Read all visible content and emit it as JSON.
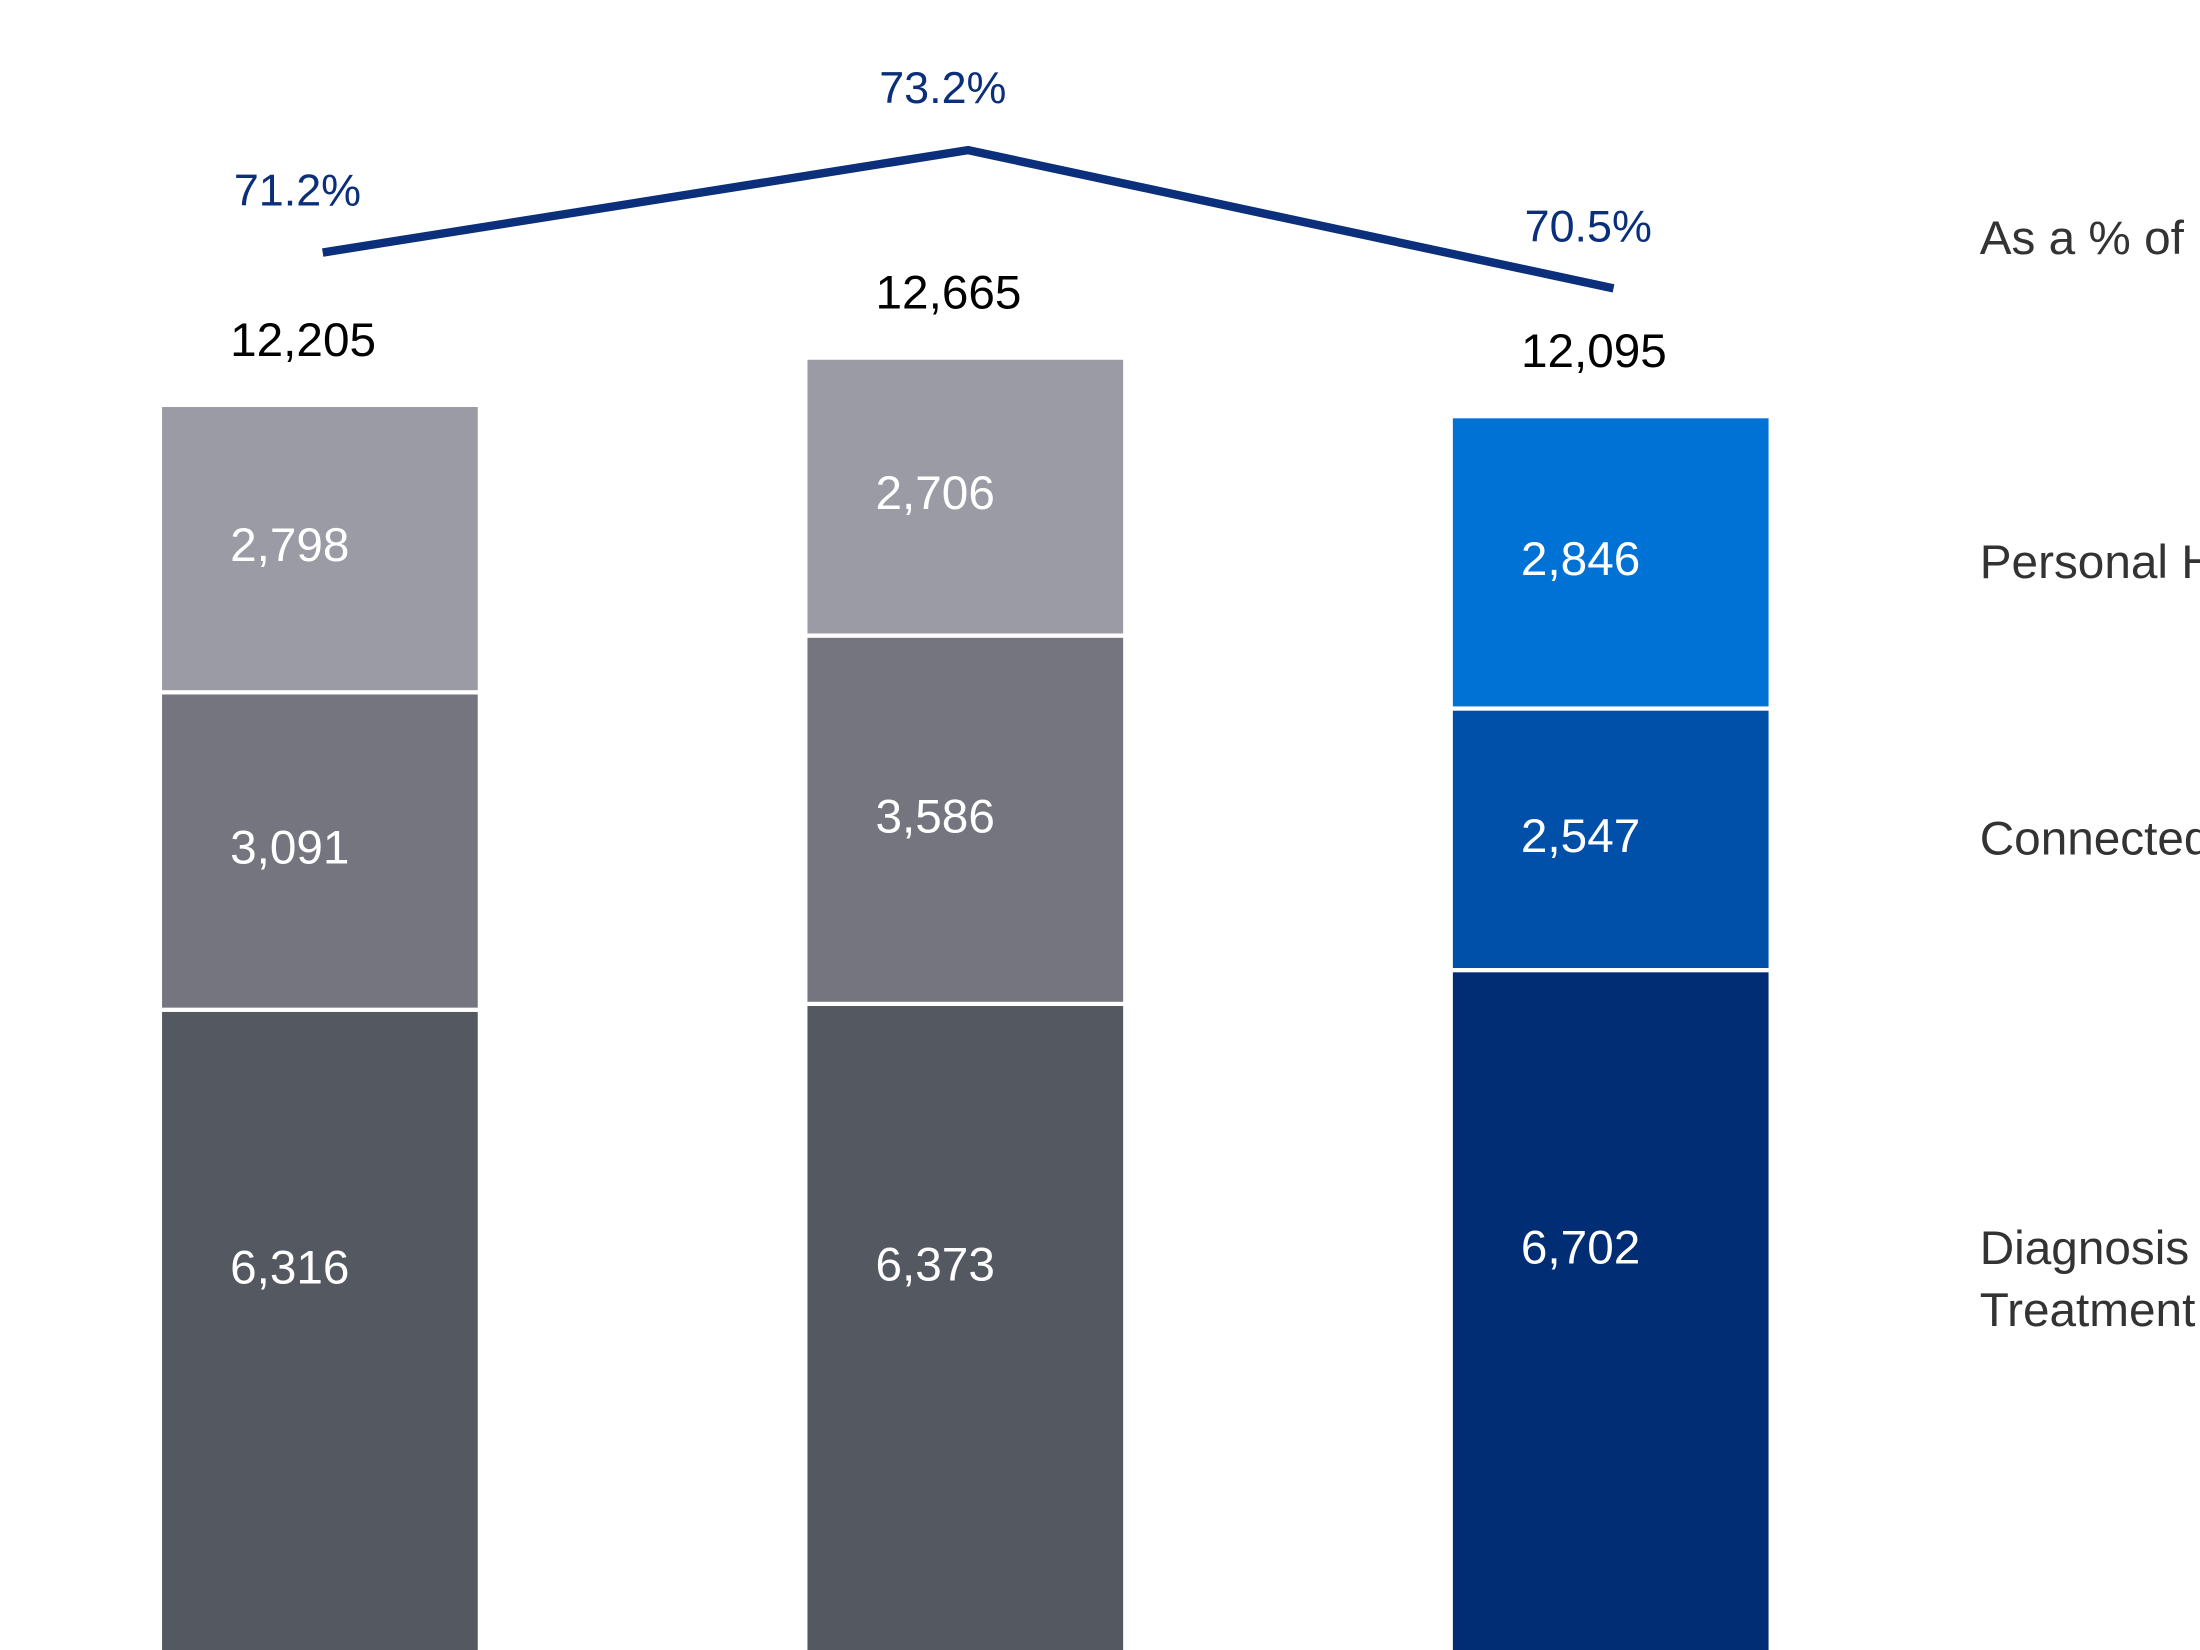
{
  "chart_data": {
    "type": "bar",
    "stacked": true,
    "categories": [
      null,
      null,
      null
    ],
    "series": [
      {
        "name": "Diagnosis\nTreatment",
        "colors": [
          "#545861",
          "#545861",
          "#002d74"
        ],
        "values": [
          6316,
          6373,
          6702
        ],
        "value_labels": [
          "6,316",
          "6,373",
          "6,702"
        ]
      },
      {
        "name": "Connected",
        "colors": [
          "#74757f",
          "#74757f",
          "#004fa9"
        ],
        "values": [
          3091,
          3586,
          2547
        ],
        "value_labels": [
          "3,091",
          "3,586",
          "2,547"
        ]
      },
      {
        "name": "Personal H",
        "colors": [
          "#9a9ba5",
          "#9a9ba5",
          "#0072d6"
        ],
        "values": [
          2798,
          2706,
          2846
        ],
        "value_labels": [
          "2,798",
          "2,706",
          "2,846"
        ]
      }
    ],
    "totals": [
      12205,
      12665,
      12095
    ],
    "total_labels": [
      "12,205",
      "12,665",
      "12,095"
    ],
    "line": {
      "name": "As a % of",
      "color": "#0b2f7a",
      "axis": "y2",
      "values": [
        71.2,
        73.2,
        70.5
      ],
      "value_labels": [
        "71.2%",
        "73.2%",
        "70.5%"
      ]
    }
  }
}
